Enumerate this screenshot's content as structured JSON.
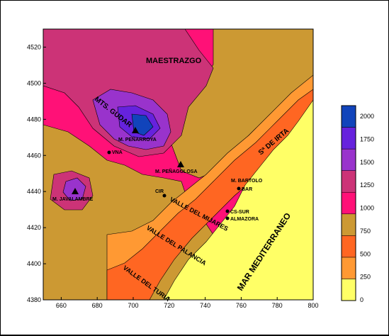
{
  "chart_data": {
    "type": "heatmap",
    "title": "",
    "xlabel": "",
    "ylabel": "",
    "xlim": [
      650,
      800
    ],
    "ylim": [
      4380,
      4530
    ],
    "x_ticks": [
      "660",
      "680",
      "700",
      "720",
      "740",
      "760",
      "780",
      "800"
    ],
    "y_ticks": [
      "4380",
      "4400",
      "4420",
      "4440",
      "4460",
      "4480",
      "4500",
      "4520"
    ],
    "legend_labels": [
      "0",
      "250",
      "500",
      "750",
      "1000",
      "1250",
      "1500",
      "1750",
      "2000"
    ],
    "legend_colors": [
      "#ffff66",
      "#ff9933",
      "#ff6622",
      "#cc9933",
      "#ff1177",
      "#cc3377",
      "#9933cc",
      "#6622dd",
      "#1144bb"
    ],
    "regions": {
      "maestrazgo": "MAESTRAZGO",
      "mts_gudar": "MTS. GUDAR",
      "s_irta": "Sª DE IRTA",
      "valle_mijares": "VALLE DEL MIJARES",
      "valle_palancia": "VALLE DEL PALANCIA",
      "valle_turia": "VALLE DEL TURIA",
      "mar": "MAR MEDITERRANEO"
    },
    "places": {
      "m_penarroya": "M. PEÑARROYA",
      "vna": "VNA",
      "m_penagolosa": "M. PEÑAGOLOSA",
      "m_javalambre": "M. JAVALAMBRE",
      "cir": "CIR",
      "m_bartolo": "M. BARTOLO",
      "bar": "BAR",
      "cs_sur": "CS-SUR",
      "almazora": "ALMAZORA"
    }
  }
}
